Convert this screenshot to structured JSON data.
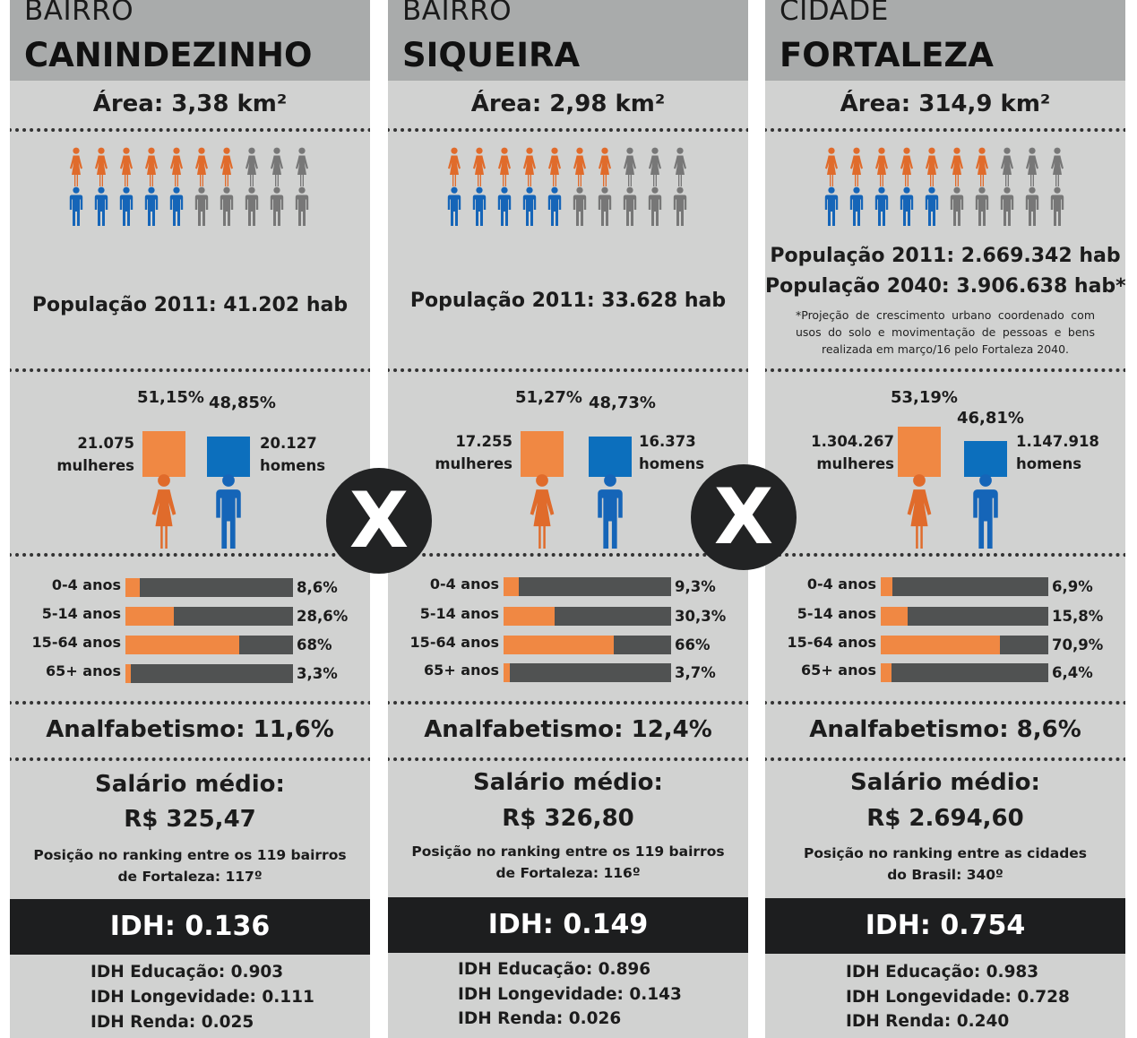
{
  "colors": {
    "female": "#e06b2b",
    "male": "#1565b8",
    "inactive": "#777777",
    "female_bar": "#f08843",
    "male_bar": "#0c6fbd",
    "age_track": "#505252",
    "idh_bg": "#1d1e1f"
  },
  "columns": [
    {
      "kicker": "BAIRRO",
      "place": "CANINDEZINHO",
      "area": "Área: 3,38 km²",
      "icons": {
        "female_active": 7,
        "male_active": 5,
        "total": 10
      },
      "population": [
        "População 2011: 41.202 hab"
      ],
      "note": "",
      "gender": {
        "female_pct": "51,15%",
        "male_pct": "48,85%",
        "female_value": 51.15,
        "male_value": 48.85,
        "female_count": "21.075",
        "female_word": "mulheres",
        "male_count": "20.127",
        "male_word": "homens"
      },
      "ages": [
        {
          "label": "0-4 anos",
          "pct": "8,6%",
          "value": 8.6
        },
        {
          "label": "5-14 anos",
          "pct": "28,6%",
          "value": 28.6
        },
        {
          "label": "15-64 anos",
          "pct": "68%",
          "value": 68
        },
        {
          "label": "65+ anos",
          "pct": "3,3%",
          "value": 3.3
        }
      ],
      "analfabetismo": "Analfabetismo: 11,6%",
      "salario_label": "Salário médio:",
      "salario_value": "R$ 325,47",
      "ranking": [
        "Posição no ranking entre os 119 bairros",
        "de Fortaleza: 117º"
      ],
      "idh": "IDH: 0.136",
      "idh_sub": [
        "IDH Educação: 0.903",
        "IDH Longevidade: 0.111",
        "IDH Renda: 0.025"
      ]
    },
    {
      "kicker": "BAIRRO",
      "place": "SIQUEIRA",
      "area": "Área: 2,98 km²",
      "icons": {
        "female_active": 7,
        "male_active": 5,
        "total": 10
      },
      "population": [
        "População 2011: 33.628 hab"
      ],
      "note": "",
      "gender": {
        "female_pct": "51,27%",
        "male_pct": "48,73%",
        "female_value": 51.27,
        "male_value": 48.73,
        "female_count": "17.255",
        "female_word": "mulheres",
        "male_count": "16.373",
        "male_word": "homens"
      },
      "ages": [
        {
          "label": "0-4 anos",
          "pct": "9,3%",
          "value": 9.3
        },
        {
          "label": "5-14 anos",
          "pct": "30,3%",
          "value": 30.3
        },
        {
          "label": "15-64 anos",
          "pct": "66%",
          "value": 66
        },
        {
          "label": "65+ anos",
          "pct": "3,7%",
          "value": 3.7
        }
      ],
      "analfabetismo": "Analfabetismo: 12,4%",
      "salario_label": "Salário médio:",
      "salario_value": "R$ 326,80",
      "ranking": [
        "Posição no ranking entre os 119 bairros",
        "de Fortaleza: 116º"
      ],
      "idh": "IDH: 0.149",
      "idh_sub": [
        "IDH Educação: 0.896",
        "IDH Longevidade: 0.143",
        "IDH Renda: 0.026"
      ]
    },
    {
      "kicker": "CIDADE",
      "place": "FORTALEZA",
      "area": "Área: 314,9 km²",
      "icons": {
        "female_active": 7,
        "male_active": 5,
        "total": 10
      },
      "population": [
        "População 2011: 2.669.342 hab",
        "População 2040: 3.906.638 hab*"
      ],
      "note": "*Projeção de crescimento urbano coordenado com usos do solo e movimentação de pessoas e bens realizada em março/16 pelo Fortaleza 2040.",
      "gender": {
        "female_pct": "53,19%",
        "male_pct": "46,81%",
        "female_value": 53.19,
        "male_value": 46.81,
        "female_count": "1.304.267",
        "female_word": "mulheres",
        "male_count": "1.147.918",
        "male_word": "homens"
      },
      "ages": [
        {
          "label": "0-4 anos",
          "pct": "6,9%",
          "value": 6.9
        },
        {
          "label": "5-14 anos",
          "pct": "15,8%",
          "value": 15.8
        },
        {
          "label": "15-64 anos",
          "pct": "70,9%",
          "value": 70.9
        },
        {
          "label": "65+ anos",
          "pct": "6,4%",
          "value": 6.4
        }
      ],
      "analfabetismo": "Analfabetismo: 8,6%",
      "salario_label": "Salário médio:",
      "salario_value": "R$ 2.694,60",
      "ranking": [
        "Posição no ranking entre as cidades",
        "do Brasil: 340º"
      ],
      "idh": "IDH: 0.754",
      "idh_sub": [
        "IDH Educação: 0.983",
        "IDH Longevidade: 0.728",
        "IDH Renda: 0.240"
      ]
    }
  ],
  "versus": [
    "X",
    "X"
  ]
}
